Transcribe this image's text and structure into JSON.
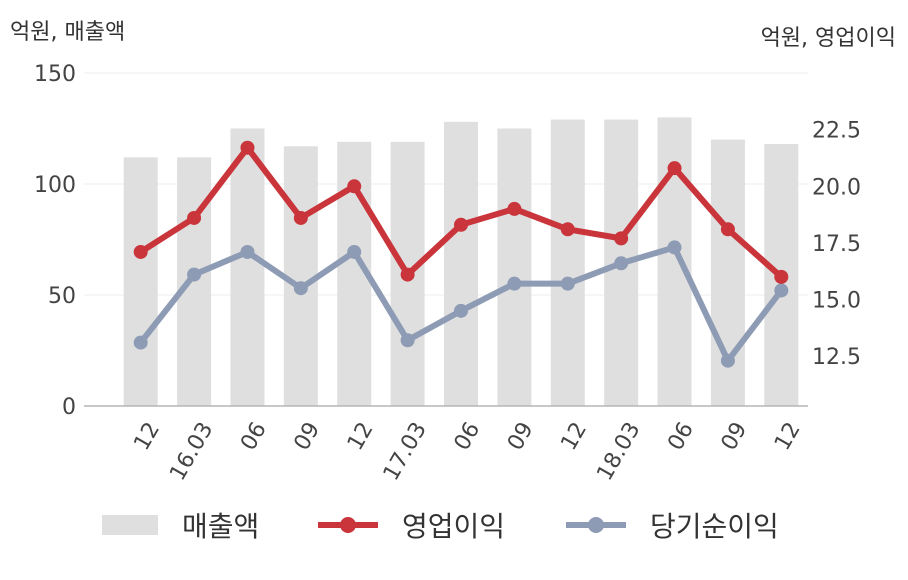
{
  "chart_data": {
    "type": "bar",
    "categories": [
      "12",
      "16.03",
      "06",
      "09",
      "12",
      "17.03",
      "06",
      "09",
      "12",
      "18.03",
      "06",
      "09",
      "12"
    ],
    "ylabel_left": "억원, 매출액",
    "ylabel_right": "억원, 영업이익",
    "ylim_left": [
      0,
      150
    ],
    "ylim_right": [
      10.3,
      25
    ],
    "yticks_left": [
      "0",
      "50",
      "100",
      "150"
    ],
    "yticks_right": [
      "12.5",
      "15.0",
      "17.5",
      "20.0",
      "22.5"
    ],
    "grid": true,
    "legend_position": "bottom",
    "series": [
      {
        "name": "매출액",
        "type": "bar",
        "axis": "left",
        "color": "#dfdfdf",
        "values": [
          112,
          112,
          125,
          117,
          119,
          119,
          128,
          125,
          129,
          129,
          130,
          120,
          118
        ]
      },
      {
        "name": "영업이익",
        "type": "line",
        "axis": "right",
        "color": "#c9353a",
        "values": [
          17.1,
          18.6,
          21.7,
          18.6,
          20.0,
          16.1,
          18.3,
          19.0,
          18.1,
          17.7,
          20.8,
          18.1,
          16.0
        ]
      },
      {
        "name": "당기순이익",
        "type": "line",
        "axis": "right",
        "color": "#8e9bb5",
        "values": [
          13.1,
          16.1,
          17.1,
          15.5,
          17.1,
          13.2,
          14.5,
          15.7,
          15.7,
          16.6,
          17.3,
          12.3,
          15.4
        ]
      }
    ]
  }
}
